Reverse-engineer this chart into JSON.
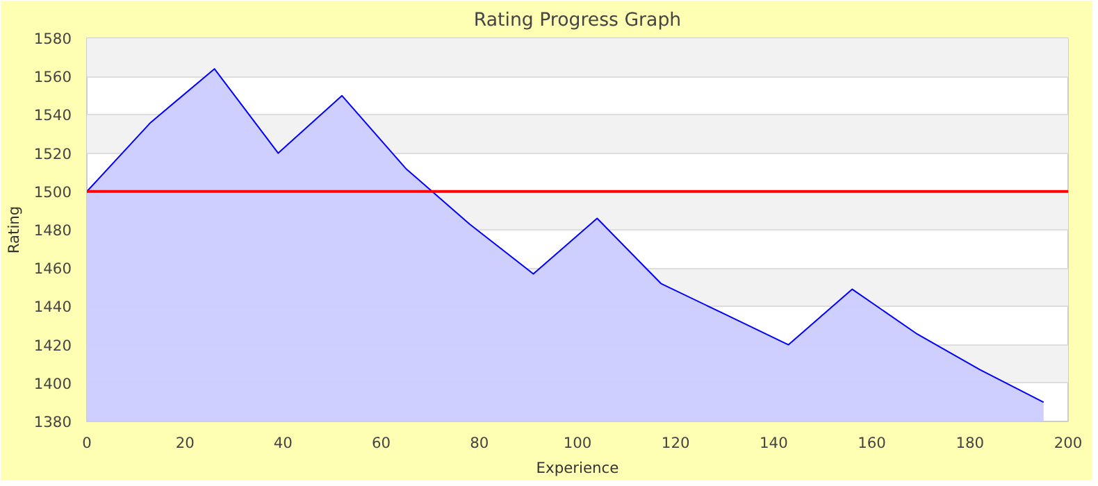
{
  "chart_data": {
    "type": "area",
    "title": "Rating Progress Graph",
    "xlabel": "Experience",
    "ylabel": "Rating",
    "x": [
      0,
      13,
      26,
      39,
      52,
      65,
      78,
      91,
      104,
      117,
      130,
      143,
      156,
      169,
      182,
      195
    ],
    "series": [
      {
        "color": "#0000ff",
        "values": [
          1500,
          1536,
          1564,
          1520,
          1550,
          1512,
          1483,
          1457,
          1486,
          1452,
          1436,
          1420,
          1449,
          1426,
          1407,
          1390
        ]
      }
    ],
    "xlim": [
      0,
      200
    ],
    "xticks": [
      0,
      20,
      40,
      60,
      80,
      100,
      120,
      140,
      160,
      180,
      200
    ],
    "ylim": [
      1380,
      1580
    ],
    "yticks": [
      1380,
      1400,
      1420,
      1440,
      1460,
      1480,
      1500,
      1520,
      1540,
      1560,
      1580
    ],
    "ref_lines": [
      {
        "axis": "y",
        "value": 1500,
        "color": "#ff0000"
      }
    ],
    "grid": "y"
  }
}
